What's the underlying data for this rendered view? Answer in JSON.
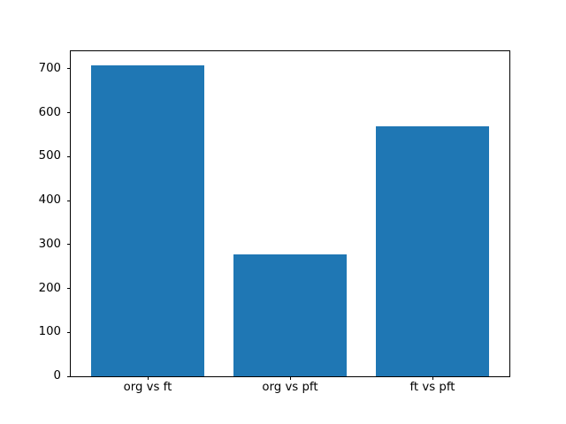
{
  "figure": {
    "background_color": "#ffffff",
    "spine_color": "#000000",
    "tick_color": "#000000",
    "tick_label_color": "#000000"
  },
  "chart_data": {
    "type": "bar",
    "title": "",
    "xlabel": "",
    "ylabel": "",
    "categories": [
      "org vs ft",
      "org vs pft",
      "ft vs pft"
    ],
    "values": [
      708,
      278,
      569
    ],
    "bar_color": "#1f77b4",
    "bar_width": 0.8,
    "xlim": [
      -0.54,
      2.54
    ],
    "ylim": [
      0,
      740
    ],
    "yticks": [
      0,
      100,
      200,
      300,
      400,
      500,
      600,
      700
    ],
    "grid": false,
    "legend": null
  }
}
